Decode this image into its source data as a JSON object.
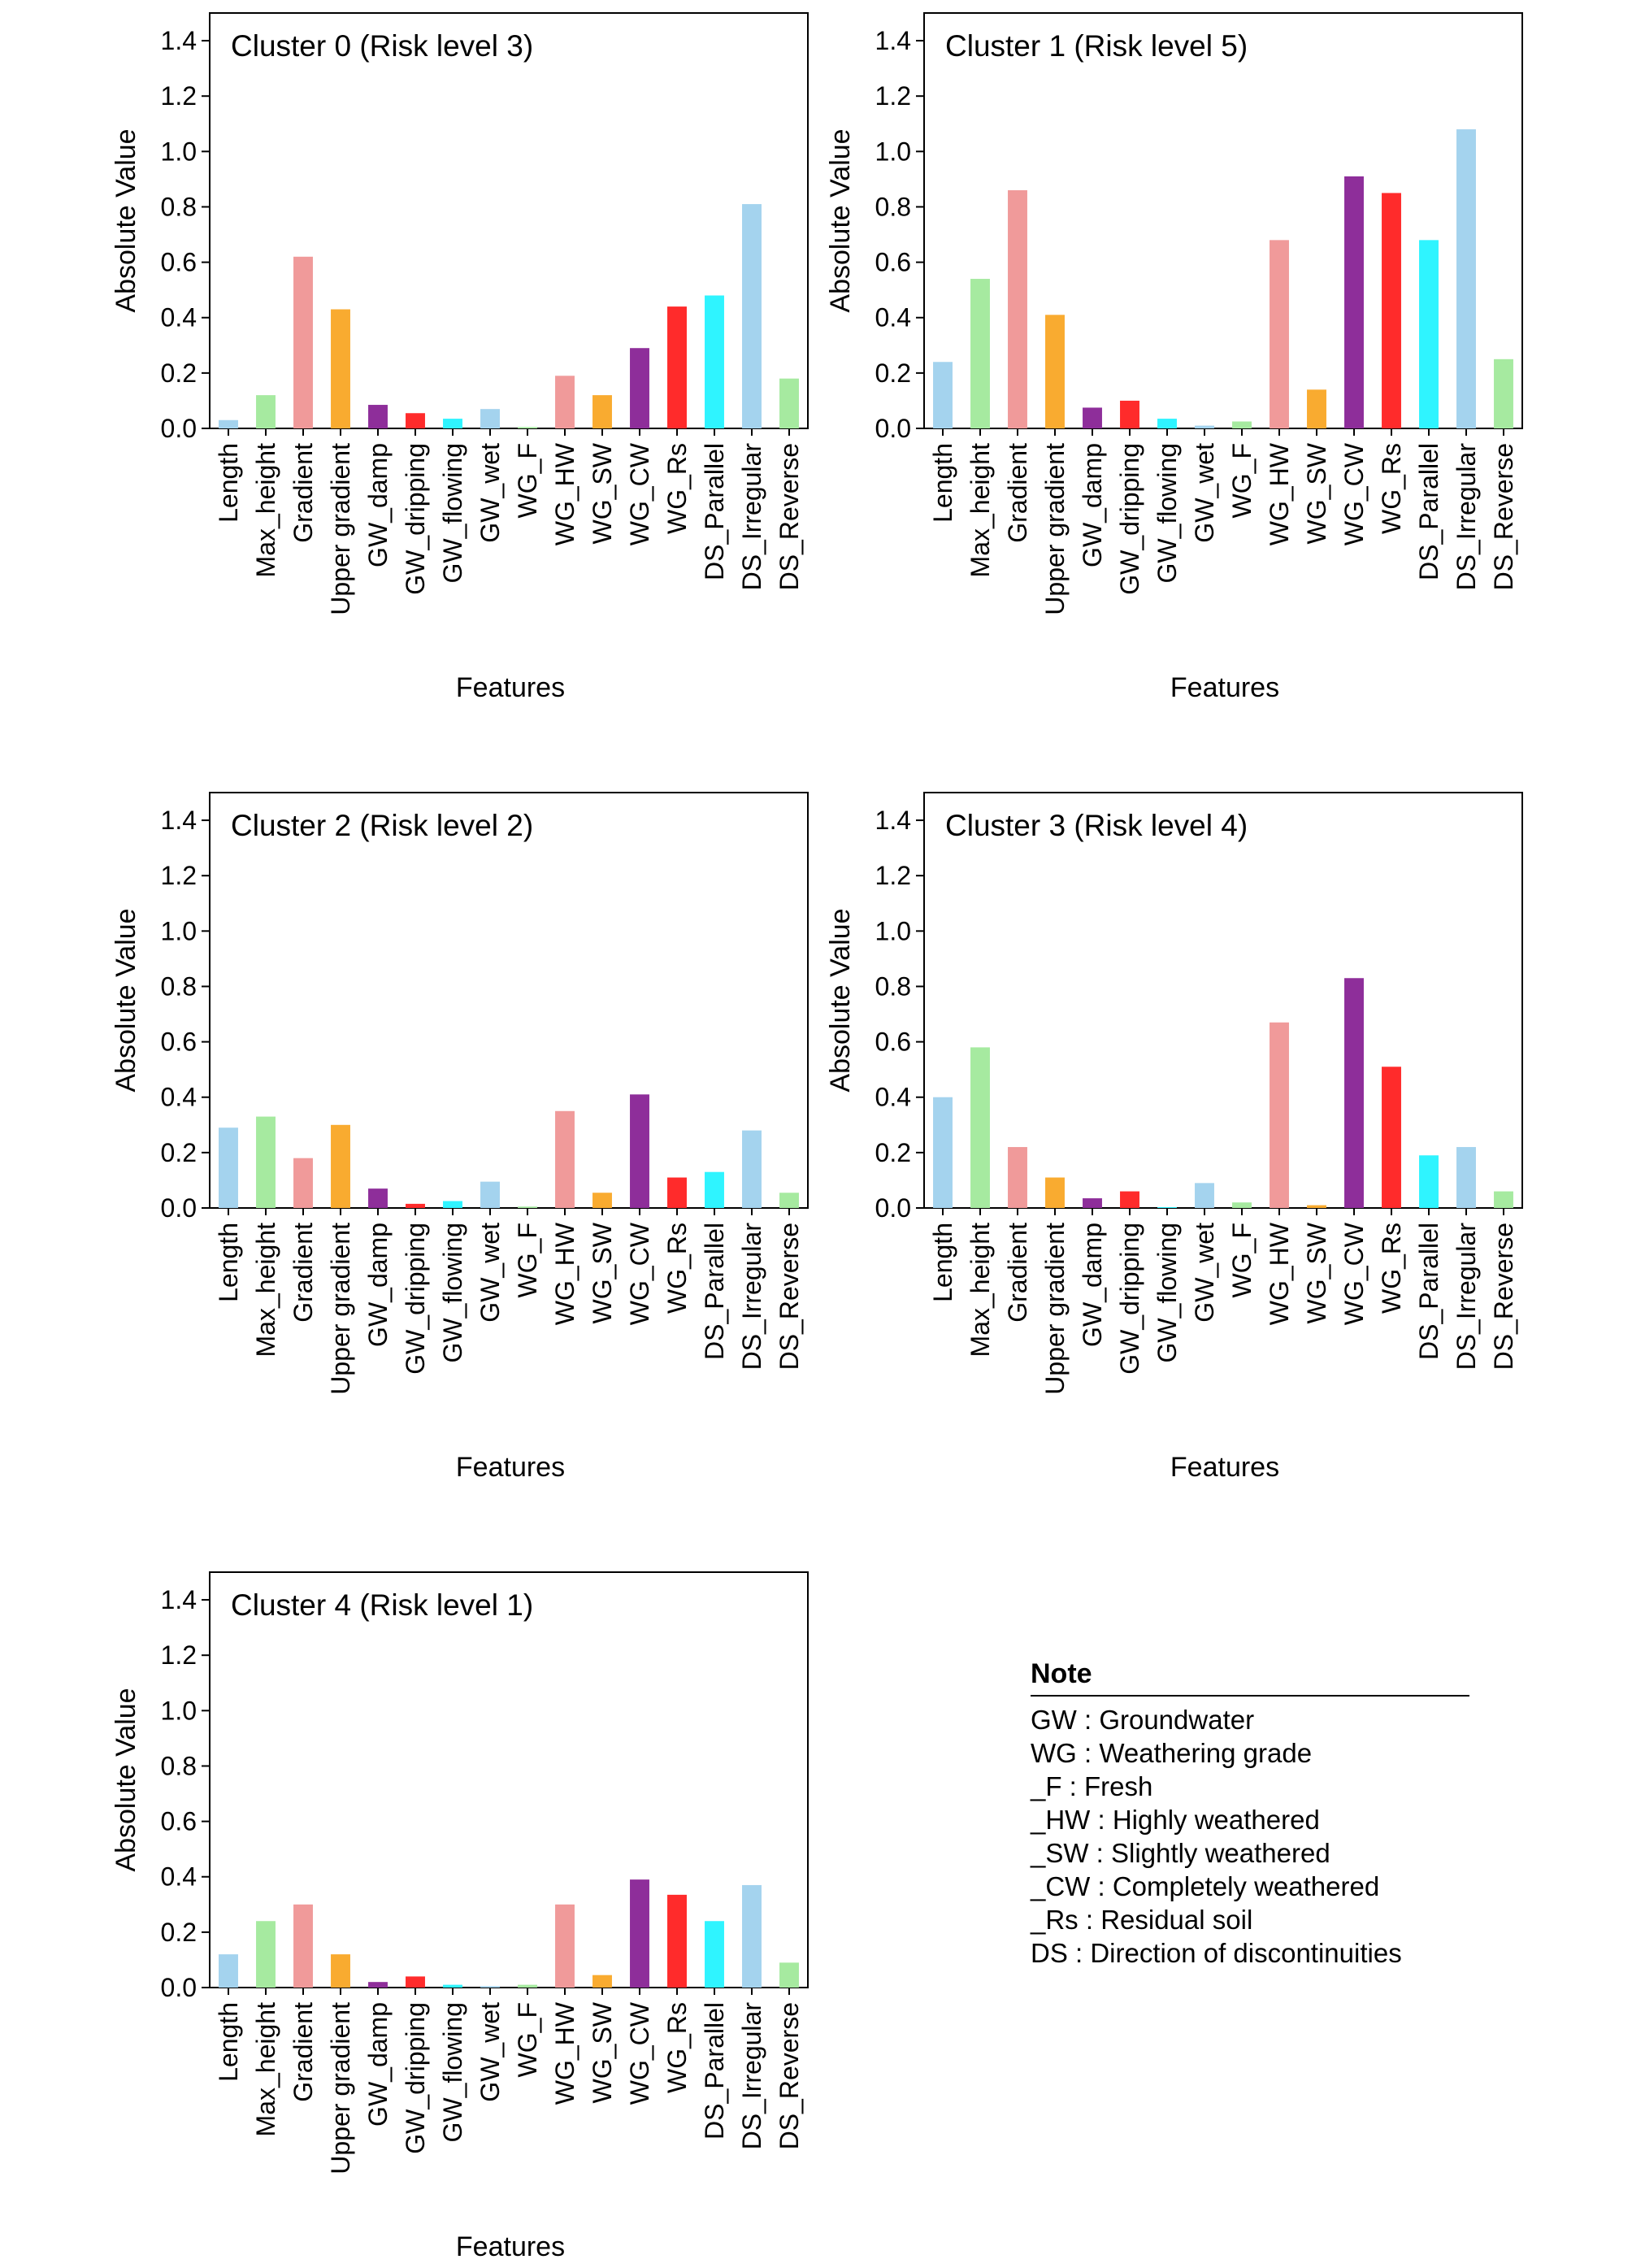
{
  "features": [
    "Length",
    "Max_height",
    "Gradient",
    "Upper gradient",
    "GW_damp",
    "GW_dripping",
    "GW_flowing",
    "GW_wet",
    "WG_F",
    "WG_HW",
    "WG_SW",
    "WG_CW",
    "WG_Rs",
    "DS_Parallel",
    "DS_Irregular",
    "DS_Reverse"
  ],
  "colors": [
    "#a4d3ee",
    "#a6eaa0",
    "#f09a9a",
    "#f9ab30",
    "#8e2e9a",
    "#ff2b2b",
    "#2ff4ff",
    "#a4d3ee",
    "#a6eaa0",
    "#f09a9a",
    "#f9ab30",
    "#8e2e9a",
    "#ff2b2b",
    "#2ff4ff",
    "#a4d3ee",
    "#a6eaa0"
  ],
  "chart_data": [
    {
      "type": "bar",
      "title": "Cluster 0 (Risk level 3)",
      "xlabel": "Features",
      "ylabel": "Absolute Value",
      "ylim": [
        0,
        1.5
      ],
      "yticks": [
        "0.0",
        "0.2",
        "0.4",
        "0.6",
        "0.8",
        "1.0",
        "1.2",
        "1.4"
      ],
      "values": [
        0.03,
        0.12,
        0.62,
        0.43,
        0.085,
        0.055,
        0.035,
        0.07,
        0.005,
        0.19,
        0.12,
        0.29,
        0.44,
        0.48,
        0.81,
        0.18
      ]
    },
    {
      "type": "bar",
      "title": "Cluster 1 (Risk level 5)",
      "xlabel": "Features",
      "ylabel": "Absolute Value",
      "ylim": [
        0,
        1.5
      ],
      "yticks": [
        "0.0",
        "0.2",
        "0.4",
        "0.6",
        "0.8",
        "1.0",
        "1.2",
        "1.4"
      ],
      "values": [
        0.24,
        0.54,
        0.86,
        0.41,
        0.075,
        0.1,
        0.035,
        0.01,
        0.025,
        0.68,
        0.14,
        0.91,
        0.85,
        0.68,
        1.08,
        0.25
      ]
    },
    {
      "type": "bar",
      "title": "Cluster 2 (Risk level 2)",
      "xlabel": "Features",
      "ylabel": "Absolute Value",
      "ylim": [
        0,
        1.5
      ],
      "yticks": [
        "0.0",
        "0.2",
        "0.4",
        "0.6",
        "0.8",
        "1.0",
        "1.2",
        "1.4"
      ],
      "values": [
        0.29,
        0.33,
        0.18,
        0.3,
        0.07,
        0.015,
        0.025,
        0.095,
        0.005,
        0.35,
        0.055,
        0.41,
        0.11,
        0.13,
        0.28,
        0.055
      ]
    },
    {
      "type": "bar",
      "title": "Cluster 3 (Risk level 4)",
      "xlabel": "Features",
      "ylabel": "Absolute Value",
      "ylim": [
        0,
        1.5
      ],
      "yticks": [
        "0.0",
        "0.2",
        "0.4",
        "0.6",
        "0.8",
        "1.0",
        "1.2",
        "1.4"
      ],
      "values": [
        0.4,
        0.58,
        0.22,
        0.11,
        0.035,
        0.06,
        0.003,
        0.09,
        0.02,
        0.67,
        0.01,
        0.83,
        0.51,
        0.19,
        0.22,
        0.06
      ]
    },
    {
      "type": "bar",
      "title": "Cluster 4 (Risk level 1)",
      "xlabel": "Features",
      "ylabel": "Absolute Value",
      "ylim": [
        0,
        1.5
      ],
      "yticks": [
        "0.0",
        "0.2",
        "0.4",
        "0.6",
        "0.8",
        "1.0",
        "1.2",
        "1.4"
      ],
      "values": [
        0.12,
        0.24,
        0.3,
        0.12,
        0.02,
        0.04,
        0.01,
        0.005,
        0.01,
        0.3,
        0.045,
        0.39,
        0.335,
        0.24,
        0.37,
        0.09
      ]
    }
  ],
  "note": {
    "title": "Note",
    "lines": [
      "GW : Groundwater",
      "WG : Weathering grade",
      "_F : Fresh",
      "_HW : Highly weathered",
      "_SW : Slightly weathered",
      "_CW : Completely weathered",
      "_Rs : Residual soil",
      "DS : Direction of discontinuities"
    ]
  }
}
